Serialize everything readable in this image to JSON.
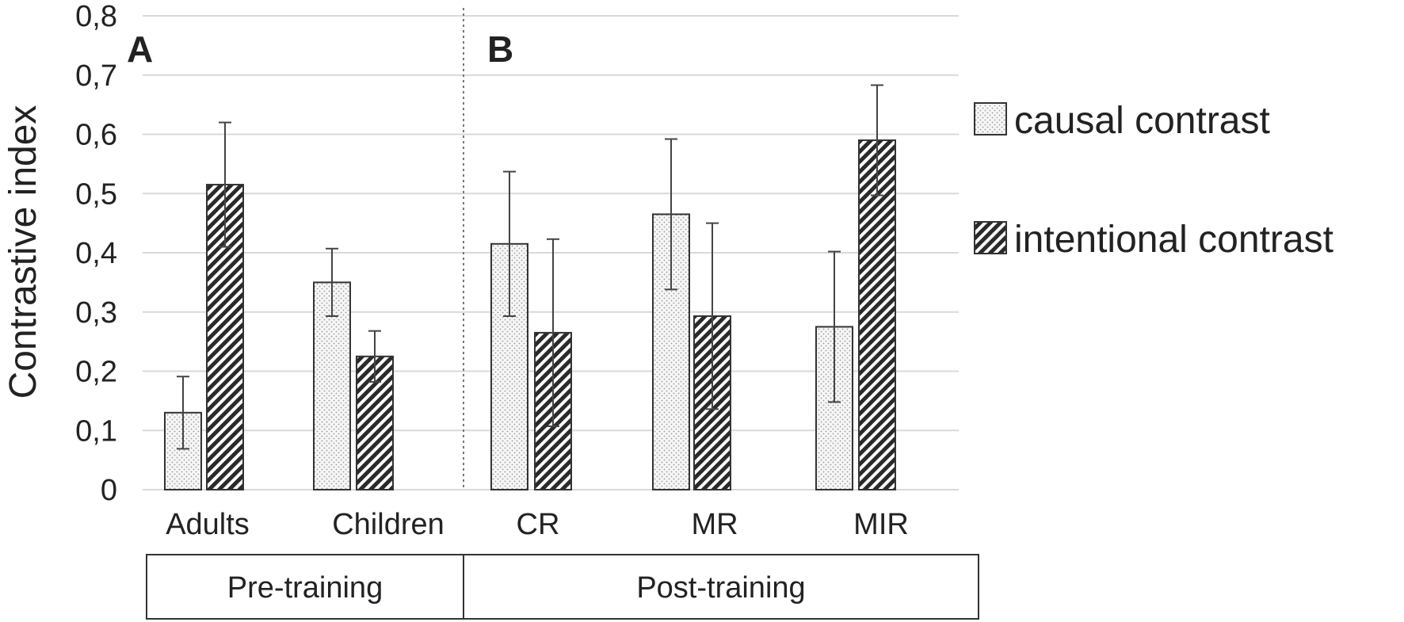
{
  "chart_data": {
    "type": "bar",
    "ylabel": "Contrastive index",
    "xlabel": "",
    "ylim": [
      0,
      0.8
    ],
    "yticks": [
      "0",
      "0,1",
      "0,2",
      "0,3",
      "0,4",
      "0,5",
      "0,6",
      "0,7",
      "0,8"
    ],
    "categories": [
      "Adults",
      "Children",
      "CR",
      "MR",
      "MIR"
    ],
    "panels": [
      {
        "label": "A",
        "categories": [
          "Adults",
          "Children"
        ]
      },
      {
        "label": "B",
        "categories": [
          "CR",
          "MR",
          "MIR"
        ]
      }
    ],
    "groups": [
      {
        "label": "Pre-training",
        "categories": [
          "Adults",
          "Children"
        ]
      },
      {
        "label": "Post-training",
        "categories": [
          "CR",
          "MR",
          "MIR"
        ]
      }
    ],
    "series": [
      {
        "name": "causal contrast",
        "pattern": "dotted",
        "values": [
          0.13,
          0.35,
          0.415,
          0.465,
          0.275
        ],
        "error": [
          0.061,
          0.057,
          0.122,
          0.127,
          0.127
        ]
      },
      {
        "name": "intentional contrast",
        "pattern": "hatched",
        "values": [
          0.515,
          0.225,
          0.265,
          0.293,
          0.59
        ],
        "error": [
          0.105,
          0.043,
          0.158,
          0.157,
          0.093
        ]
      }
    ],
    "legend_position": "right",
    "grid": true
  }
}
